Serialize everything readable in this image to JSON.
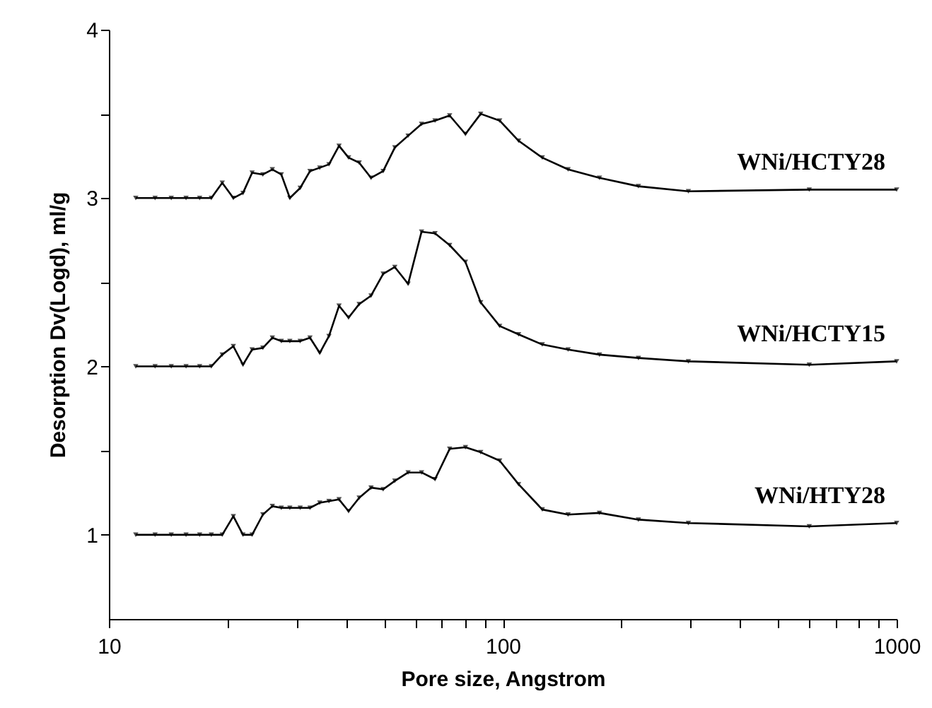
{
  "chart_data": {
    "type": "line",
    "xlabel": "Pore size, Angstrom",
    "ylabel": "Desorption Dv(Logd), ml/g",
    "x": [
      11.7,
      13.1,
      14.4,
      15.7,
      17.0,
      18.2,
      19.4,
      20.7,
      21.9,
      23.1,
      24.6,
      26.0,
      27.4,
      28.8,
      30.6,
      32.4,
      34.3,
      36.2,
      38.4,
      40.6,
      43.2,
      46.3,
      49.7,
      53.2,
      57.5,
      62.2,
      67.3,
      73.3,
      80.4,
      87.9,
      98.2,
      109.7,
      126,
      146.5,
      176,
      221,
      296,
      600,
      1000
    ],
    "series": [
      {
        "name": "WNi/HCTY28",
        "color": "#000000",
        "values": [
          3.0,
          3.0,
          3.0,
          3.0,
          3.0,
          3.0,
          3.09,
          3.0,
          3.03,
          3.15,
          3.14,
          3.17,
          3.14,
          3.0,
          3.06,
          3.16,
          3.18,
          3.2,
          3.31,
          3.24,
          3.21,
          3.12,
          3.16,
          3.3,
          3.37,
          3.44,
          3.46,
          3.49,
          3.38,
          3.5,
          3.46,
          3.34,
          3.24,
          3.17,
          3.12,
          3.07,
          3.04,
          3.05,
          3.05
        ]
      },
      {
        "name": "WNi/HCTY15",
        "color": "#000000",
        "values": [
          2.0,
          2.0,
          2.0,
          2.0,
          2.0,
          2.0,
          2.07,
          2.12,
          2.01,
          2.1,
          2.11,
          2.17,
          2.15,
          2.15,
          2.15,
          2.17,
          2.08,
          2.18,
          2.36,
          2.29,
          2.37,
          2.42,
          2.55,
          2.59,
          2.49,
          2.8,
          2.79,
          2.72,
          2.62,
          2.38,
          2.24,
          2.19,
          2.13,
          2.1,
          2.07,
          2.05,
          2.03,
          2.01,
          2.03
        ]
      },
      {
        "name": "WNi/HTY28",
        "color": "#000000",
        "values": [
          1.0,
          1.0,
          1.0,
          1.0,
          1.0,
          1.0,
          1.0,
          1.11,
          1.0,
          1.0,
          1.12,
          1.17,
          1.16,
          1.16,
          1.16,
          1.16,
          1.19,
          1.2,
          1.21,
          1.14,
          1.22,
          1.28,
          1.27,
          1.32,
          1.37,
          1.37,
          1.33,
          1.51,
          1.52,
          1.49,
          1.44,
          1.3,
          1.15,
          1.12,
          1.13,
          1.09,
          1.07,
          1.05,
          1.07
        ]
      }
    ],
    "log": "x",
    "xlim": [
      10,
      1000
    ],
    "xticks": [
      10,
      {
        "value": 20,
        "label": null
      },
      {
        "value": 30,
        "label": null
      },
      {
        "value": 40,
        "label": null
      },
      {
        "value": 50,
        "label": null
      },
      {
        "value": 60,
        "label": null
      },
      {
        "value": 70,
        "label": null
      },
      {
        "value": 80,
        "label": null
      },
      {
        "value": 90,
        "label": null
      },
      100,
      {
        "value": 200,
        "label": null
      },
      {
        "value": 300,
        "label": null
      },
      {
        "value": 400,
        "label": null
      },
      {
        "value": 500,
        "label": null
      },
      {
        "value": 600,
        "label": null
      },
      {
        "value": 700,
        "label": null
      },
      {
        "value": 800,
        "label": null
      },
      {
        "value": 900,
        "label": null
      },
      1000
    ],
    "ylim": [
      0.5,
      4
    ],
    "yticks": [
      1,
      {
        "value": 1.5,
        "label": null
      },
      2,
      {
        "value": 2.5,
        "label": null
      },
      3,
      {
        "value": 3.5,
        "label": null
      },
      4
    ],
    "grid": false,
    "legend": false,
    "marker": "triangle",
    "line_style": "solid"
  }
}
